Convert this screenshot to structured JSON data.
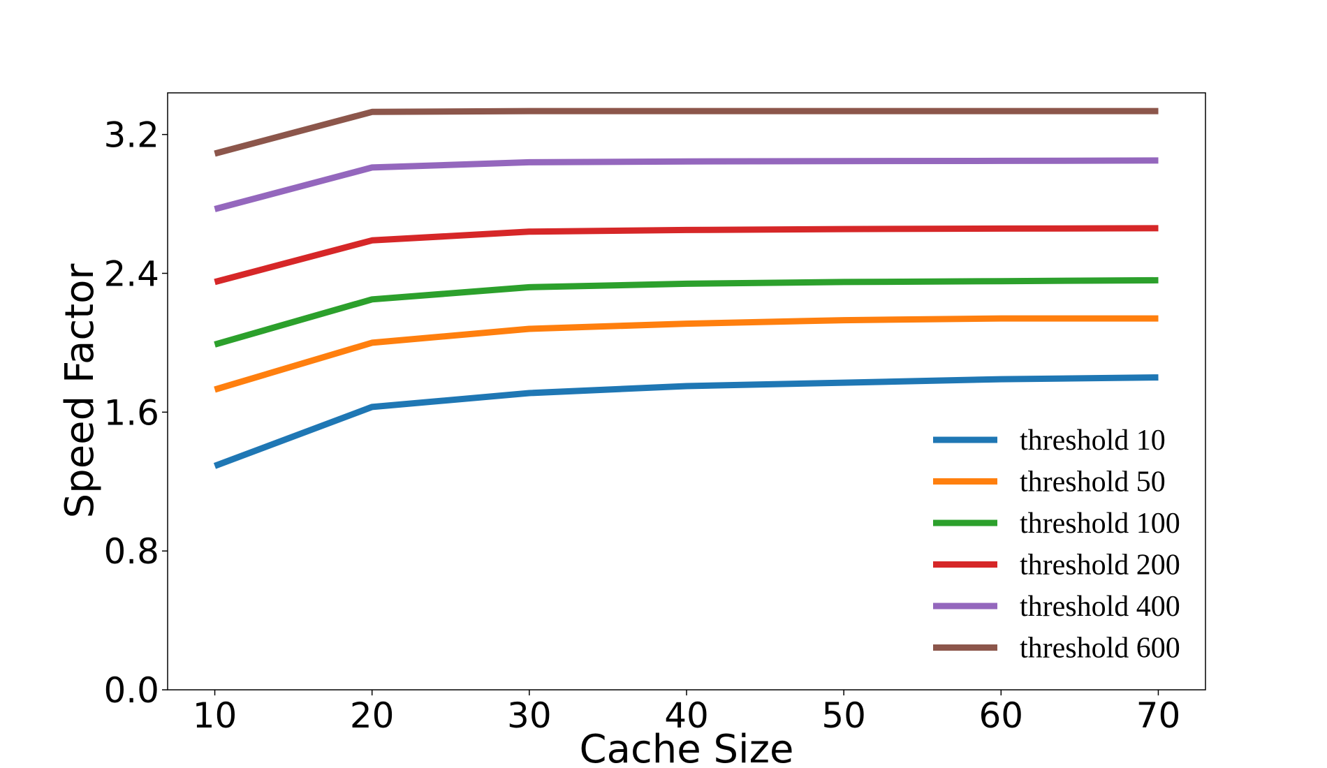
{
  "chart_data": {
    "type": "line",
    "title": "",
    "xlabel": "Cache Size",
    "ylabel": "Speed Factor",
    "x": [
      10,
      20,
      30,
      40,
      50,
      60,
      70
    ],
    "xlim": [
      7,
      73
    ],
    "ylim": [
      0,
      3.44
    ],
    "xticks": [
      10,
      20,
      30,
      40,
      50,
      60,
      70
    ],
    "xtick_labels": [
      "10",
      "20",
      "30",
      "40",
      "50",
      "60",
      "70"
    ],
    "yticks": [
      0,
      0.8,
      1.6,
      2.4,
      3.2
    ],
    "ytick_labels": [
      "0.0",
      "0.8",
      "1.6",
      "2.4",
      "3.2"
    ],
    "grid": false,
    "legend_position": "lower-right",
    "series": [
      {
        "name": "threshold 10",
        "color": "#1f77b4",
        "values": [
          1.29,
          1.63,
          1.71,
          1.75,
          1.77,
          1.79,
          1.8
        ]
      },
      {
        "name": "threshold 50",
        "color": "#ff7f0e",
        "values": [
          1.73,
          2.0,
          2.08,
          2.11,
          2.13,
          2.14,
          2.14
        ]
      },
      {
        "name": "threshold 100",
        "color": "#2ca02c",
        "values": [
          1.99,
          2.25,
          2.32,
          2.34,
          2.35,
          2.355,
          2.36
        ]
      },
      {
        "name": "threshold 200",
        "color": "#d62728",
        "values": [
          2.35,
          2.59,
          2.64,
          2.65,
          2.655,
          2.658,
          2.66
        ]
      },
      {
        "name": "threshold 400",
        "color": "#9467bd",
        "values": [
          2.77,
          3.01,
          3.04,
          3.045,
          3.047,
          3.048,
          3.05
        ]
      },
      {
        "name": "threshold 600",
        "color": "#8c564b",
        "values": [
          3.09,
          3.33,
          3.335,
          3.335,
          3.335,
          3.335,
          3.335
        ]
      }
    ]
  }
}
